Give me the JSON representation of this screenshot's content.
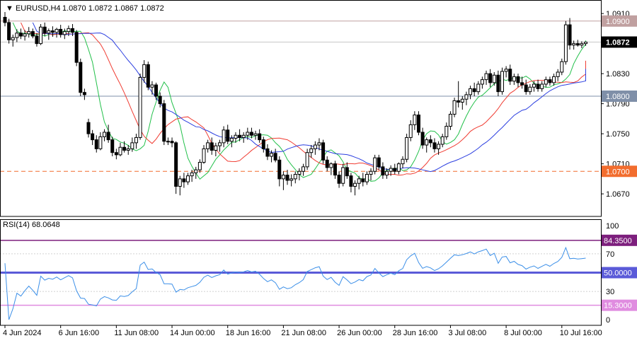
{
  "chart_data": [
    {
      "type": "candlestick",
      "title": "EURUSD,H4",
      "ohlc_header": [
        "1.0870",
        "1.0872",
        "1.0867",
        "1.0872"
      ],
      "ylim": [
        1.064,
        1.0928
      ],
      "y_ticks": [
        "1.0910",
        "1.0870",
        "1.0830",
        "1.0790",
        "1.0750",
        "1.0710",
        "1.0670"
      ],
      "x_tick_labels": [
        "4 Jun 2024",
        "6 Jun 16:00",
        "11 Jun 08:00",
        "14 Jun 00:00",
        "18 Jun 16:00",
        "21 Jun 08:00",
        "26 Jun 00:00",
        "28 Jun 16:00",
        "3 Jul 08:00",
        "8 Jul 00:00",
        "10 Jul 16:00"
      ],
      "x_tick_index": [
        0,
        14,
        28,
        42,
        56,
        70,
        84,
        98,
        112,
        126,
        140
      ],
      "current_price": "1.0872",
      "horizontal_levels": [
        {
          "label": "1.0900",
          "value": 1.09,
          "color": "#c0a0a0",
          "style": "solid"
        },
        {
          "label": "1.0800",
          "value": 1.08,
          "color": "#7f8fa8",
          "style": "solid"
        },
        {
          "label": "1.0700",
          "value": 1.07,
          "color": "#f26d2e",
          "style": "dashed"
        }
      ],
      "candles": [
        [
          1.0905,
          1.0912,
          1.0893,
          1.0898
        ],
        [
          1.0898,
          1.0903,
          1.087,
          1.0875
        ],
        [
          1.0875,
          1.0882,
          1.0866,
          1.0878
        ],
        [
          1.0878,
          1.0889,
          1.0872,
          1.0884
        ],
        [
          1.0884,
          1.089,
          1.0876,
          1.088
        ],
        [
          1.088,
          1.0888,
          1.0874,
          1.0883
        ],
        [
          1.0883,
          1.0892,
          1.0878,
          1.0886
        ],
        [
          1.0886,
          1.089,
          1.0877,
          1.088
        ],
        [
          1.088,
          1.0884,
          1.0866,
          1.087
        ],
        [
          1.087,
          1.0896,
          1.0868,
          1.0892
        ],
        [
          1.0892,
          1.0898,
          1.088,
          1.0884
        ],
        [
          1.0884,
          1.089,
          1.0875,
          1.0887
        ],
        [
          1.0887,
          1.0893,
          1.0879,
          1.0885
        ],
        [
          1.0885,
          1.0891,
          1.0878,
          1.0889
        ],
        [
          1.0889,
          1.0895,
          1.0878,
          1.0882
        ],
        [
          1.0882,
          1.089,
          1.0876,
          1.0886
        ],
        [
          1.0886,
          1.0894,
          1.088,
          1.089
        ],
        [
          1.089,
          1.0896,
          1.088,
          1.0885
        ],
        [
          1.0885,
          1.0888,
          1.084,
          1.0845
        ],
        [
          1.0845,
          1.085,
          1.08,
          1.0805
        ],
        [
          1.0805,
          1.081,
          1.0795,
          1.0802
        ],
        [
          1.0765,
          1.077,
          1.0745,
          1.075
        ],
        [
          1.075,
          1.0755,
          1.0735,
          1.0742
        ],
        [
          1.0742,
          1.0748,
          1.0725,
          1.073
        ],
        [
          1.073,
          1.0752,
          1.0728,
          1.0746
        ],
        [
          1.0746,
          1.0756,
          1.074,
          1.0752
        ],
        [
          1.0752,
          1.0762,
          1.0738,
          1.0742
        ],
        [
          1.0742,
          1.0746,
          1.072,
          1.0725
        ],
        [
          1.0725,
          1.073,
          1.0716,
          1.0722
        ],
        [
          1.0722,
          1.0738,
          1.072,
          1.0732
        ],
        [
          1.0732,
          1.074,
          1.0725,
          1.0728
        ],
        [
          1.0728,
          1.0735,
          1.0722,
          1.073
        ],
        [
          1.073,
          1.0745,
          1.0726,
          1.0738
        ],
        [
          1.0738,
          1.075,
          1.073,
          1.0745
        ],
        [
          1.0745,
          1.083,
          1.0742,
          1.0825
        ],
        [
          1.0825,
          1.0848,
          1.0818,
          1.0842
        ],
        [
          1.0842,
          1.0846,
          1.0808,
          1.0812
        ],
        [
          1.0812,
          1.082,
          1.0802,
          1.0815
        ],
        [
          1.0815,
          1.0818,
          1.0795,
          1.08
        ],
        [
          1.08,
          1.0805,
          1.0785,
          1.079
        ],
        [
          1.079,
          1.0795,
          1.0735,
          1.074
        ],
        [
          1.074,
          1.0745,
          1.0735,
          1.074
        ],
        [
          1.074,
          1.0745,
          1.0732,
          1.0738
        ],
        [
          1.0738,
          1.074,
          1.067,
          1.068
        ],
        [
          1.068,
          1.0694,
          1.0668,
          1.069
        ],
        [
          1.069,
          1.0698,
          1.0678,
          1.0686
        ],
        [
          1.0686,
          1.0698,
          1.0682,
          1.0694
        ],
        [
          1.0694,
          1.0702,
          1.0686,
          1.0698
        ],
        [
          1.0698,
          1.0706,
          1.069,
          1.0702
        ],
        [
          1.0702,
          1.0716,
          1.0698,
          1.0712
        ],
        [
          1.0712,
          1.0735,
          1.071,
          1.073
        ],
        [
          1.073,
          1.0742,
          1.0725,
          1.0738
        ],
        [
          1.0738,
          1.0745,
          1.0722,
          1.0728
        ],
        [
          1.0728,
          1.0738,
          1.072,
          1.0734
        ],
        [
          1.0734,
          1.0742,
          1.0726,
          1.0738
        ],
        [
          1.0738,
          1.076,
          1.0732,
          1.0755
        ],
        [
          1.0755,
          1.0762,
          1.0736,
          1.074
        ],
        [
          1.074,
          1.0748,
          1.0732,
          1.0744
        ],
        [
          1.0744,
          1.0752,
          1.0738,
          1.0748
        ],
        [
          1.0748,
          1.0756,
          1.074,
          1.0745
        ],
        [
          1.0745,
          1.0752,
          1.0738,
          1.0748
        ],
        [
          1.0748,
          1.0758,
          1.0742,
          1.0752
        ],
        [
          1.0752,
          1.0758,
          1.0744,
          1.0748
        ],
        [
          1.0748,
          1.0754,
          1.0742,
          1.075
        ],
        [
          1.075,
          1.0756,
          1.0738,
          1.0742
        ],
        [
          1.0742,
          1.0746,
          1.0725,
          1.073
        ],
        [
          1.073,
          1.0736,
          1.0715,
          1.072
        ],
        [
          1.072,
          1.0728,
          1.0712,
          1.0724
        ],
        [
          1.0724,
          1.073,
          1.0712,
          1.0715
        ],
        [
          1.0715,
          1.072,
          1.068,
          1.069
        ],
        [
          1.069,
          1.07,
          1.0675,
          1.0695
        ],
        [
          1.0695,
          1.0702,
          1.0682,
          1.0688
        ],
        [
          1.0688,
          1.0696,
          1.068,
          1.069
        ],
        [
          1.069,
          1.07,
          1.0684,
          1.0696
        ],
        [
          1.0696,
          1.0704,
          1.0688,
          1.07
        ],
        [
          1.07,
          1.071,
          1.0694,
          1.0706
        ],
        [
          1.0706,
          1.073,
          1.0702,
          1.0725
        ],
        [
          1.0725,
          1.0735,
          1.0718,
          1.073
        ],
        [
          1.073,
          1.074,
          1.0722,
          1.0735
        ],
        [
          1.0735,
          1.0744,
          1.0728,
          1.0738
        ],
        [
          1.0738,
          1.0742,
          1.071,
          1.0715
        ],
        [
          1.0715,
          1.072,
          1.07,
          1.0705
        ],
        [
          1.0705,
          1.0712,
          1.0695,
          1.071
        ],
        [
          1.071,
          1.0714,
          1.069,
          1.0695
        ],
        [
          1.0695,
          1.07,
          1.0678,
          1.0684
        ],
        [
          1.0684,
          1.071,
          1.068,
          1.0705
        ],
        [
          1.0705,
          1.0712,
          1.069,
          1.0694
        ],
        [
          1.0694,
          1.0698,
          1.0672,
          1.068
        ],
        [
          1.068,
          1.0688,
          1.0668,
          1.0684
        ],
        [
          1.0684,
          1.0694,
          1.0676,
          1.069
        ],
        [
          1.069,
          1.0698,
          1.068,
          1.0686
        ],
        [
          1.0686,
          1.07,
          1.0682,
          1.0696
        ],
        [
          1.0696,
          1.0704,
          1.0688,
          1.07
        ],
        [
          1.07,
          1.0722,
          1.0696,
          1.0718
        ],
        [
          1.0718,
          1.0722,
          1.0702,
          1.0706
        ],
        [
          1.0706,
          1.0712,
          1.069,
          1.0695
        ],
        [
          1.0695,
          1.0704,
          1.069,
          1.07
        ],
        [
          1.07,
          1.0708,
          1.0694,
          1.0704
        ],
        [
          1.0704,
          1.071,
          1.0696,
          1.07
        ],
        [
          1.07,
          1.0712,
          1.0696,
          1.071
        ],
        [
          1.071,
          1.072,
          1.0704,
          1.0716
        ],
        [
          1.0716,
          1.075,
          1.0712,
          1.0745
        ],
        [
          1.0745,
          1.0768,
          1.074,
          1.0762
        ],
        [
          1.0762,
          1.078,
          1.0755,
          1.0775
        ],
        [
          1.0775,
          1.078,
          1.0748,
          1.0752
        ],
        [
          1.0752,
          1.0758,
          1.073,
          1.0735
        ],
        [
          1.0735,
          1.0745,
          1.0725,
          1.0742
        ],
        [
          1.0742,
          1.0748,
          1.0732,
          1.0738
        ],
        [
          1.0738,
          1.0744,
          1.0725,
          1.073
        ],
        [
          1.073,
          1.074,
          1.0722,
          1.0736
        ],
        [
          1.0736,
          1.075,
          1.0732,
          1.0746
        ],
        [
          1.0746,
          1.0765,
          1.0742,
          1.076
        ],
        [
          1.076,
          1.078,
          1.0755,
          1.0776
        ],
        [
          1.0776,
          1.0798,
          1.0772,
          1.0794
        ],
        [
          1.0794,
          1.082,
          1.0785,
          1.0792
        ],
        [
          1.0792,
          1.08,
          1.0782,
          1.0796
        ],
        [
          1.0796,
          1.0806,
          1.0788,
          1.0802
        ],
        [
          1.0802,
          1.0814,
          1.0796,
          1.081
        ],
        [
          1.081,
          1.0818,
          1.08,
          1.0806
        ],
        [
          1.0806,
          1.082,
          1.0802,
          1.0816
        ],
        [
          1.0816,
          1.0826,
          1.081,
          1.0822
        ],
        [
          1.0822,
          1.0834,
          1.0815,
          1.083
        ],
        [
          1.083,
          1.0836,
          1.0812,
          1.0818
        ],
        [
          1.0818,
          1.0832,
          1.0814,
          1.0828
        ],
        [
          1.0828,
          1.0834,
          1.08,
          1.0806
        ],
        [
          1.0806,
          1.0838,
          1.0802,
          1.0833
        ],
        [
          1.0833,
          1.084,
          1.0825,
          1.0836
        ],
        [
          1.0836,
          1.0842,
          1.0815,
          1.082
        ],
        [
          1.082,
          1.083,
          1.0815,
          1.0826
        ],
        [
          1.0826,
          1.083,
          1.0812,
          1.0818
        ],
        [
          1.0818,
          1.0826,
          1.081,
          1.0815
        ],
        [
          1.0815,
          1.0822,
          1.0802,
          1.0806
        ],
        [
          1.0806,
          1.0816,
          1.0802,
          1.0812
        ],
        [
          1.0812,
          1.082,
          1.0806,
          1.0816
        ],
        [
          1.0816,
          1.0822,
          1.0806,
          1.081
        ],
        [
          1.081,
          1.082,
          1.0806,
          1.0816
        ],
        [
          1.0816,
          1.0826,
          1.0812,
          1.0822
        ],
        [
          1.0822,
          1.0826,
          1.0814,
          1.0818
        ],
        [
          1.0818,
          1.083,
          1.0814,
          1.0826
        ],
        [
          1.0826,
          1.0836,
          1.082,
          1.0832
        ],
        [
          1.0832,
          1.085,
          1.0828,
          1.0846
        ],
        [
          1.0846,
          1.09,
          1.0842,
          1.0895
        ],
        [
          1.0895,
          1.0904,
          1.0862,
          1.0868
        ],
        [
          1.0868,
          1.0874,
          1.0862,
          1.087
        ],
        [
          1.087,
          1.0875,
          1.0866,
          1.0868
        ],
        [
          1.0868,
          1.0873,
          1.0864,
          1.087
        ],
        [
          1.087,
          1.0872,
          1.0867,
          1.0872
        ]
      ],
      "moving_averages": [
        {
          "period": 5,
          "color": "#22c04a"
        },
        {
          "period": 13,
          "color": "#f03c32"
        },
        {
          "period": 21,
          "color": "#2c3fe0"
        }
      ],
      "rsi": {
        "label": "RSI(14) 68.0648",
        "period": 14,
        "ylim": [
          0,
          100
        ],
        "y_ticks": [
          "100",
          "70",
          "30",
          "0"
        ],
        "line_color": "#3b8fe8",
        "levels": [
          {
            "label": "84.3500",
            "value": 84.35,
            "color": "#7d1f7d"
          },
          {
            "label": "50.0000",
            "value": 50.0,
            "color": "#5a5ad8"
          },
          {
            "label": "15.3000",
            "value": 15.3,
            "color": "#e08ce0"
          }
        ]
      }
    }
  ]
}
